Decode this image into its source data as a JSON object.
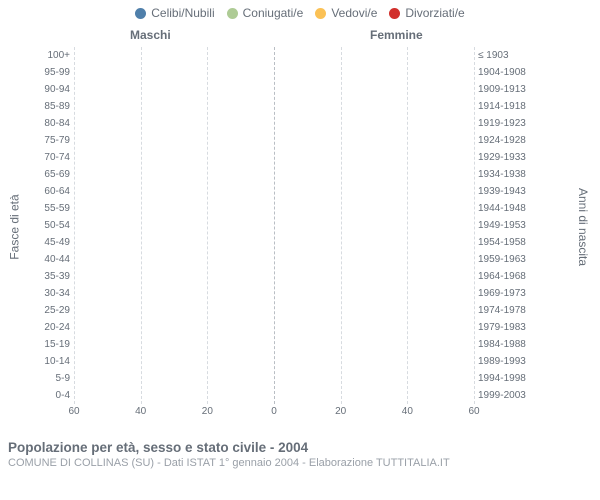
{
  "chart": {
    "type": "population-pyramid",
    "background_color": "#ffffff",
    "grid_color": "#d7dbe0",
    "center_grid_color": "#b9bec4",
    "text_color": "#666e78",
    "muted_text_color": "#9aa0a8",
    "legend_fontsize": 12,
    "tick_fontsize": 10,
    "title_fontsize": 13.5,
    "subtitle_fontsize": 11,
    "side_label_left": "Maschi",
    "side_label_right": "Femmine",
    "y_title_left": "Fasce di età",
    "y_title_right": "Anni di nascita",
    "x_max": 60,
    "x_ticks": [
      60,
      40,
      20,
      0,
      20,
      40,
      60
    ],
    "categories": [
      {
        "key": "single",
        "label": "Celibi/Nubili",
        "color": "#4f7faa"
      },
      {
        "key": "married",
        "label": "Coniugati/e",
        "color": "#aecb95"
      },
      {
        "key": "widowed",
        "label": "Vedovi/e",
        "color": "#fbc155"
      },
      {
        "key": "divorced",
        "label": "Divorziati/e",
        "color": "#d12f2b"
      }
    ],
    "rows": [
      {
        "age": "100+",
        "birth": "≤ 1903",
        "m": {
          "single": 0,
          "married": 0,
          "widowed": 0,
          "divorced": 0
        },
        "f": {
          "single": 0,
          "married": 0,
          "widowed": 0,
          "divorced": 0
        }
      },
      {
        "age": "95-99",
        "birth": "1904-1908",
        "m": {
          "single": 0,
          "married": 0,
          "widowed": 0,
          "divorced": 0
        },
        "f": {
          "single": 0,
          "married": 0,
          "widowed": 2,
          "divorced": 0
        }
      },
      {
        "age": "90-94",
        "birth": "1909-1913",
        "m": {
          "single": 1,
          "married": 0,
          "widowed": 1,
          "divorced": 0
        },
        "f": {
          "single": 0,
          "married": 0,
          "widowed": 3,
          "divorced": 0
        }
      },
      {
        "age": "85-89",
        "birth": "1914-1918",
        "m": {
          "single": 1,
          "married": 1,
          "widowed": 1,
          "divorced": 0
        },
        "f": {
          "single": 1,
          "married": 1,
          "widowed": 6,
          "divorced": 0
        }
      },
      {
        "age": "80-84",
        "birth": "1919-1923",
        "m": {
          "single": 3,
          "married": 8,
          "widowed": 3,
          "divorced": 0
        },
        "f": {
          "single": 2,
          "married": 6,
          "widowed": 10,
          "divorced": 0
        }
      },
      {
        "age": "75-79",
        "birth": "1924-1928",
        "m": {
          "single": 4,
          "married": 16,
          "widowed": 1,
          "divorced": 0
        },
        "f": {
          "single": 2,
          "married": 18,
          "widowed": 11,
          "divorced": 0
        }
      },
      {
        "age": "70-74",
        "birth": "1929-1933",
        "m": {
          "single": 5,
          "married": 20,
          "widowed": 7,
          "divorced": 0
        },
        "f": {
          "single": 2,
          "married": 14,
          "widowed": 8,
          "divorced": 0
        }
      },
      {
        "age": "65-69",
        "birth": "1934-1938",
        "m": {
          "single": 5,
          "married": 22,
          "widowed": 1,
          "divorced": 0
        },
        "f": {
          "single": 3,
          "married": 28,
          "widowed": 7,
          "divorced": 0
        }
      },
      {
        "age": "60-64",
        "birth": "1939-1943",
        "m": {
          "single": 3,
          "married": 26,
          "widowed": 0,
          "divorced": 1
        },
        "f": {
          "single": 2,
          "married": 27,
          "widowed": 6,
          "divorced": 0
        }
      },
      {
        "age": "55-59",
        "birth": "1944-1948",
        "m": {
          "single": 5,
          "married": 20,
          "widowed": 0,
          "divorced": 0
        },
        "f": {
          "single": 3,
          "married": 22,
          "widowed": 1,
          "divorced": 0
        }
      },
      {
        "age": "50-54",
        "birth": "1949-1953",
        "m": {
          "single": 4,
          "married": 36,
          "widowed": 0,
          "divorced": 1
        },
        "f": {
          "single": 3,
          "married": 30,
          "widowed": 2,
          "divorced": 0
        }
      },
      {
        "age": "45-49",
        "birth": "1954-1958",
        "m": {
          "single": 8,
          "married": 20,
          "widowed": 0,
          "divorced": 0
        },
        "f": {
          "single": 3,
          "married": 21,
          "widowed": 1,
          "divorced": 0
        }
      },
      {
        "age": "40-44",
        "birth": "1959-1963",
        "m": {
          "single": 13,
          "married": 20,
          "widowed": 0,
          "divorced": 0
        },
        "f": {
          "single": 4,
          "married": 28,
          "widowed": 0,
          "divorced": 0
        }
      },
      {
        "age": "35-39",
        "birth": "1964-1968",
        "m": {
          "single": 19,
          "married": 19,
          "widowed": 0,
          "divorced": 1
        },
        "f": {
          "single": 6,
          "married": 21,
          "widowed": 0,
          "divorced": 1
        }
      },
      {
        "age": "30-34",
        "birth": "1969-1973",
        "m": {
          "single": 29,
          "married": 11,
          "widowed": 0,
          "divorced": 1
        },
        "f": {
          "single": 14,
          "married": 18,
          "widowed": 0,
          "divorced": 0
        }
      },
      {
        "age": "25-29",
        "birth": "1974-1978",
        "m": {
          "single": 41,
          "married": 3,
          "widowed": 0,
          "divorced": 0
        },
        "f": {
          "single": 39,
          "married": 10,
          "widowed": 0,
          "divorced": 0
        }
      },
      {
        "age": "20-24",
        "birth": "1979-1983",
        "m": {
          "single": 31,
          "married": 0,
          "widowed": 0,
          "divorced": 0
        },
        "f": {
          "single": 33,
          "married": 4,
          "widowed": 0,
          "divorced": 0
        }
      },
      {
        "age": "15-19",
        "birth": "1984-1988",
        "m": {
          "single": 22,
          "married": 0,
          "widowed": 0,
          "divorced": 0
        },
        "f": {
          "single": 24,
          "married": 0,
          "widowed": 0,
          "divorced": 0
        }
      },
      {
        "age": "10-14",
        "birth": "1989-1993",
        "m": {
          "single": 25,
          "married": 0,
          "widowed": 0,
          "divorced": 0
        },
        "f": {
          "single": 19,
          "married": 0,
          "widowed": 0,
          "divorced": 0
        }
      },
      {
        "age": "5-9",
        "birth": "1994-1998",
        "m": {
          "single": 17,
          "married": 0,
          "widowed": 0,
          "divorced": 0
        },
        "f": {
          "single": 16,
          "married": 0,
          "widowed": 0,
          "divorced": 0
        }
      },
      {
        "age": "0-4",
        "birth": "1999-2003",
        "m": {
          "single": 18,
          "married": 0,
          "widowed": 0,
          "divorced": 0
        },
        "f": {
          "single": 15,
          "married": 0,
          "widowed": 0,
          "divorced": 0
        }
      }
    ]
  },
  "footer": {
    "title": "Popolazione per età, sesso e stato civile - 2004",
    "subtitle": "COMUNE DI COLLINAS (SU) - Dati ISTAT 1° gennaio 2004 - Elaborazione TUTTITALIA.IT"
  }
}
